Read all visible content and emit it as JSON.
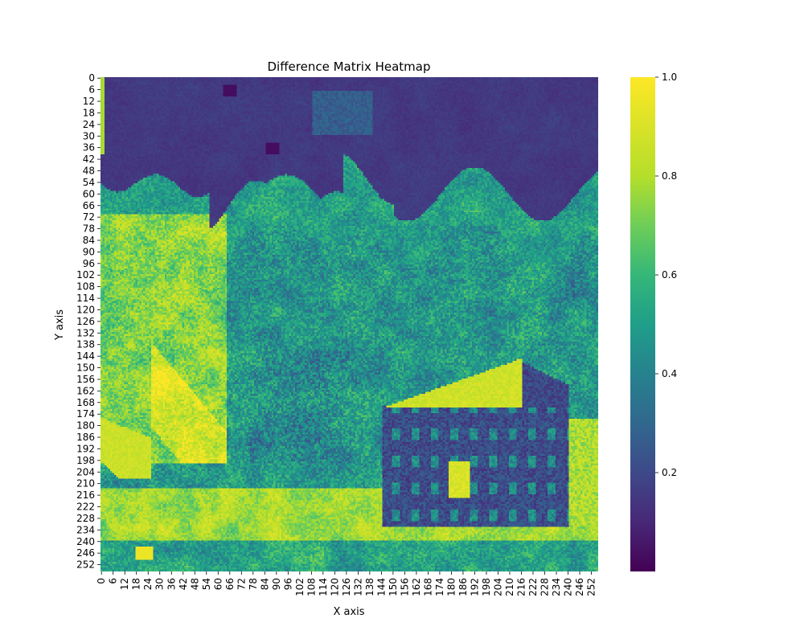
{
  "chart_data": {
    "type": "heatmap",
    "title": "Difference Matrix Heatmap",
    "xlabel": "X axis",
    "ylabel": "Y axis",
    "rows": 256,
    "cols": 256,
    "x_ticks": [
      "0",
      "6",
      "12",
      "18",
      "24",
      "30",
      "36",
      "42",
      "48",
      "54",
      "60",
      "66",
      "72",
      "78",
      "84",
      "90",
      "96",
      "102",
      "108",
      "114",
      "120",
      "126",
      "132",
      "138",
      "144",
      "150",
      "156",
      "162",
      "168",
      "174",
      "180",
      "186",
      "192",
      "198",
      "204",
      "210",
      "216",
      "222",
      "228",
      "234",
      "240",
      "246",
      "252"
    ],
    "y_ticks": [
      "0",
      "6",
      "12",
      "18",
      "24",
      "30",
      "36",
      "42",
      "48",
      "54",
      "60",
      "66",
      "72",
      "78",
      "84",
      "90",
      "96",
      "102",
      "108",
      "114",
      "120",
      "126",
      "132",
      "138",
      "144",
      "150",
      "156",
      "162",
      "168",
      "174",
      "180",
      "186",
      "192",
      "198",
      "204",
      "210",
      "216",
      "222",
      "228",
      "234",
      "240",
      "246",
      "252"
    ],
    "colorbar": {
      "colormap": "viridis",
      "range": [
        0.0,
        1.0
      ],
      "ticks": [
        "0.2",
        "0.4",
        "0.6",
        "0.8",
        "1.0"
      ],
      "tick_values": [
        0.2,
        0.4,
        0.6,
        0.8,
        1.0
      ]
    },
    "x_tick_rotation": "vertical",
    "grid": false,
    "legend": "none"
  }
}
